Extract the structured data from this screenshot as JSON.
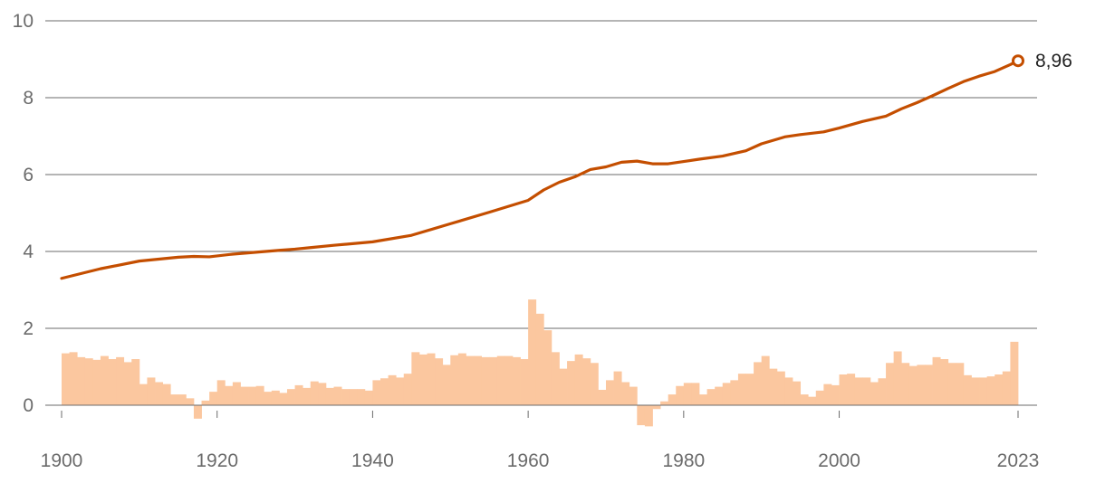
{
  "colors": {
    "line": "#c44e00",
    "bar": "#fbc79f",
    "grid": "#6b6b6b",
    "tick_text": "#6b6b6b",
    "end_text": "#222222"
  },
  "chart_data": {
    "type": "line",
    "title": "",
    "xlabel": "",
    "ylabel": "",
    "xlim": [
      1900,
      2023
    ],
    "ylim": [
      -0.5,
      10
    ],
    "y_ticks": [
      0,
      2,
      4,
      6,
      8,
      10
    ],
    "y_tick_labels": [
      "0",
      "2",
      "4",
      "6",
      "8",
      "10"
    ],
    "x_ticks": [
      1900,
      1920,
      1940,
      1960,
      1980,
      2000,
      2023
    ],
    "x_tick_labels": [
      "1900",
      "1920",
      "1940",
      "1960",
      "1980",
      "2000",
      "2023"
    ],
    "grid": "horizontal",
    "legend": "none",
    "end_label": "8,96",
    "series": [
      {
        "type": "line",
        "x": [
          1900,
          1905,
          1910,
          1915,
          1917,
          1919,
          1922,
          1925,
          1928,
          1930,
          1932,
          1935,
          1940,
          1945,
          1950,
          1955,
          1960,
          1962,
          1964,
          1966,
          1968,
          1970,
          1972,
          1974,
          1976,
          1978,
          1980,
          1982,
          1985,
          1988,
          1990,
          1993,
          1995,
          1998,
          2000,
          2003,
          2006,
          2008,
          2010,
          2012,
          2014,
          2016,
          2018,
          2020,
          2022,
          2023
        ],
        "y": [
          3.3,
          3.55,
          3.75,
          3.85,
          3.87,
          3.86,
          3.93,
          3.98,
          4.03,
          4.06,
          4.1,
          4.16,
          4.25,
          4.42,
          4.72,
          5.02,
          5.33,
          5.6,
          5.8,
          5.94,
          6.13,
          6.2,
          6.32,
          6.35,
          6.28,
          6.28,
          6.34,
          6.4,
          6.48,
          6.62,
          6.8,
          6.98,
          7.04,
          7.11,
          7.21,
          7.38,
          7.52,
          7.71,
          7.87,
          8.05,
          8.24,
          8.42,
          8.56,
          8.68,
          8.86,
          8.96
        ]
      },
      {
        "type": "bar",
        "x": [
          1900,
          1901,
          1902,
          1903,
          1904,
          1905,
          1906,
          1907,
          1908,
          1909,
          1910,
          1911,
          1912,
          1913,
          1914,
          1915,
          1916,
          1917,
          1918,
          1919,
          1920,
          1921,
          1922,
          1923,
          1924,
          1925,
          1926,
          1927,
          1928,
          1929,
          1930,
          1931,
          1932,
          1933,
          1934,
          1935,
          1936,
          1937,
          1938,
          1939,
          1940,
          1941,
          1942,
          1943,
          1944,
          1945,
          1946,
          1947,
          1948,
          1949,
          1950,
          1951,
          1952,
          1953,
          1954,
          1955,
          1956,
          1957,
          1958,
          1959,
          1960,
          1961,
          1962,
          1963,
          1964,
          1965,
          1966,
          1967,
          1968,
          1969,
          1970,
          1971,
          1972,
          1973,
          1974,
          1975,
          1976,
          1977,
          1978,
          1979,
          1980,
          1981,
          1982,
          1983,
          1984,
          1985,
          1986,
          1987,
          1988,
          1989,
          1990,
          1991,
          1992,
          1993,
          1994,
          1995,
          1996,
          1997,
          1998,
          1999,
          2000,
          2001,
          2002,
          2003,
          2004,
          2005,
          2006,
          2007,
          2008,
          2009,
          2010,
          2011,
          2012,
          2013,
          2014,
          2015,
          2016,
          2017,
          2018,
          2019,
          2020,
          2021,
          2022
        ],
        "y": [
          1.35,
          1.38,
          1.25,
          1.22,
          1.18,
          1.28,
          1.2,
          1.25,
          1.12,
          1.2,
          0.55,
          0.72,
          0.6,
          0.55,
          0.28,
          0.28,
          0.18,
          -0.35,
          0.12,
          0.35,
          0.65,
          0.5,
          0.6,
          0.48,
          0.48,
          0.5,
          0.35,
          0.38,
          0.32,
          0.42,
          0.52,
          0.45,
          0.62,
          0.58,
          0.45,
          0.48,
          0.42,
          0.42,
          0.42,
          0.38,
          0.65,
          0.7,
          0.78,
          0.72,
          0.82,
          1.38,
          1.32,
          1.35,
          1.22,
          1.05,
          1.3,
          1.35,
          1.28,
          1.28,
          1.25,
          1.25,
          1.28,
          1.28,
          1.25,
          1.2,
          2.75,
          2.38,
          1.95,
          1.38,
          0.95,
          1.15,
          1.32,
          1.22,
          1.1,
          0.4,
          0.65,
          0.88,
          0.6,
          0.48,
          -0.52,
          -0.55,
          -0.1,
          0.1,
          0.28,
          0.5,
          0.58,
          0.58,
          0.28,
          0.42,
          0.48,
          0.58,
          0.65,
          0.82,
          0.82,
          1.12,
          1.28,
          0.95,
          0.88,
          0.72,
          0.62,
          0.28,
          0.22,
          0.38,
          0.55,
          0.52,
          0.8,
          0.82,
          0.72,
          0.72,
          0.6,
          0.7,
          1.1,
          1.4,
          1.1,
          1.02,
          1.05,
          1.05,
          1.25,
          1.2,
          1.1,
          1.1,
          0.78,
          0.72,
          0.72,
          0.75,
          0.8,
          0.88,
          1.65
        ]
      }
    ]
  }
}
